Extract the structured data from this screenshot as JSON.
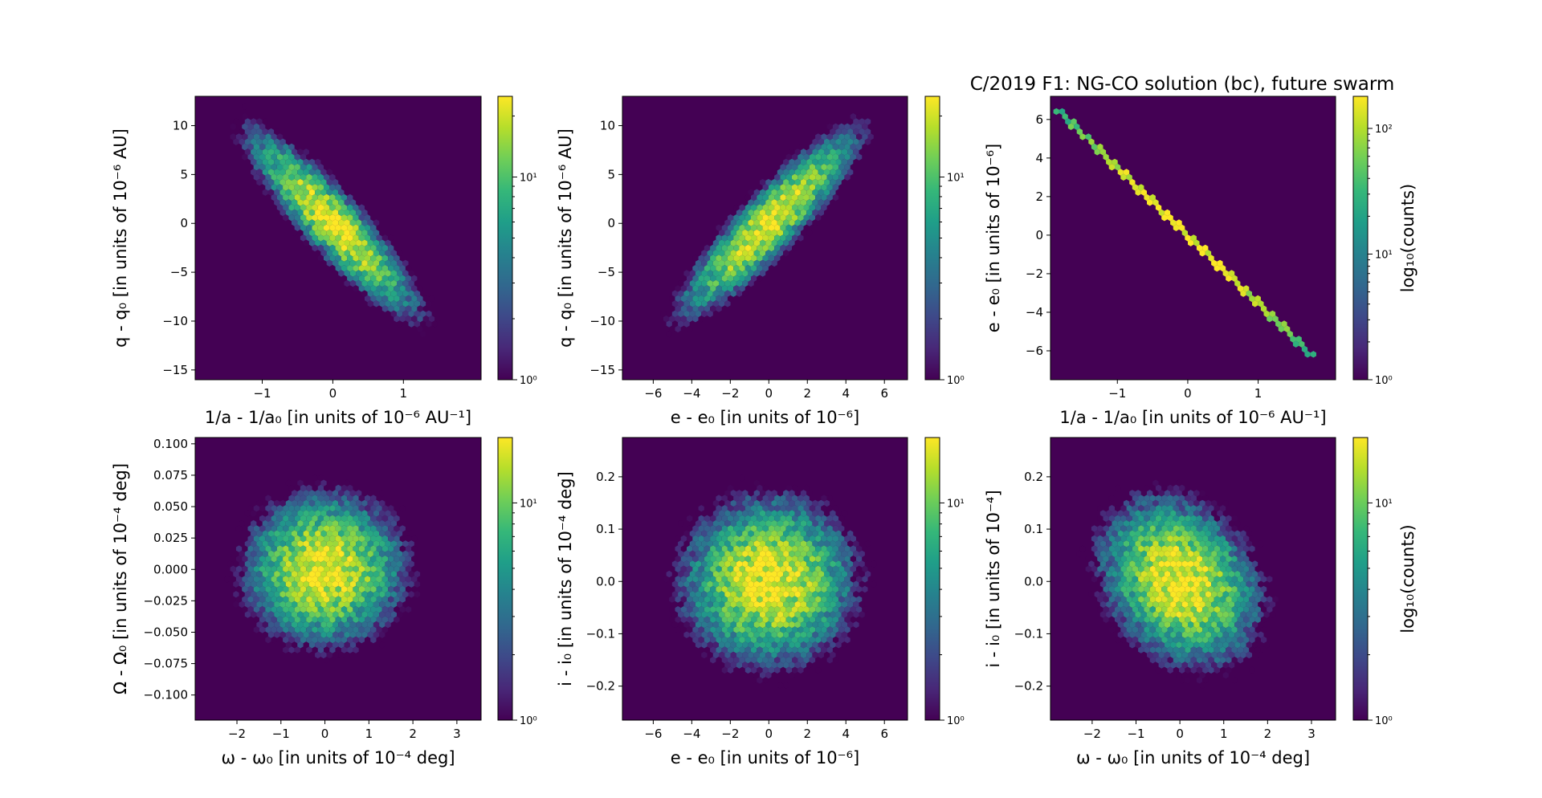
{
  "figure": {
    "title": "C/2019 F1: NG-CO solution (bc), future swarm"
  },
  "colors": {
    "background": "#440154",
    "colormap": [
      "#440154",
      "#482878",
      "#3e4989",
      "#31688e",
      "#26828e",
      "#1f9e89",
      "#35b779",
      "#6ece58",
      "#b5de2b",
      "#fde725"
    ]
  },
  "chart_data": [
    {
      "type": "heatmap",
      "subtype": "hexbin",
      "panel": "top-left",
      "xlabel": "1/a - 1/a₀ [in units of 10⁻⁶ AU⁻¹]",
      "ylabel": "q - q₀ [in units of 10⁻⁶ AU]",
      "xlim": [
        -1.95,
        2.1
      ],
      "ylim": [
        -16,
        13
      ],
      "xticks": [
        -1,
        0,
        1
      ],
      "yticks": [
        -15,
        -10,
        -5,
        0,
        5,
        10
      ],
      "distribution": {
        "center": [
          0,
          0
        ],
        "sx": 0.55,
        "sy": 4.3,
        "rho": -0.9,
        "peak_count": 25
      },
      "colorbar": {
        "scale": "log",
        "range": [
          1,
          25
        ],
        "ticks": [
          "10⁰",
          "10¹"
        ],
        "label": ""
      }
    },
    {
      "type": "heatmap",
      "subtype": "hexbin",
      "panel": "top-middle",
      "xlabel": "e - e₀ [in units of 10⁻⁶]",
      "ylabel": "q - q₀ [in units of 10⁻⁶ AU]",
      "xlim": [
        -7.6,
        7.2
      ],
      "ylim": [
        -16,
        13
      ],
      "xticks": [
        -6,
        -4,
        -2,
        0,
        2,
        4,
        6
      ],
      "yticks": [
        -15,
        -10,
        -5,
        0,
        5,
        10
      ],
      "distribution": {
        "center": [
          0,
          0
        ],
        "sx": 2.1,
        "sy": 4.3,
        "rho": 0.9,
        "peak_count": 25
      },
      "colorbar": {
        "scale": "log",
        "range": [
          1,
          25
        ],
        "ticks": [
          "10⁰",
          "10¹"
        ],
        "label": ""
      }
    },
    {
      "type": "heatmap",
      "subtype": "hexbin",
      "panel": "top-right",
      "xlabel": "1/a - 1/a₀ [in units of 10⁻⁶ AU⁻¹]",
      "ylabel": "e - e₀ [in units of 10⁻⁶]",
      "xlim": [
        -1.95,
        2.1
      ],
      "ylim": [
        -7.5,
        7.2
      ],
      "xticks": [
        -1,
        0,
        1
      ],
      "yticks": [
        -6,
        -4,
        -2,
        0,
        2,
        4,
        6
      ],
      "distribution": {
        "line_from": [
          -1.85,
          6.5
        ],
        "line_to": [
          1.75,
          -6.2
        ],
        "peak_count": 180
      },
      "colorbar": {
        "scale": "log",
        "range": [
          1,
          180
        ],
        "ticks": [
          "10⁰",
          "10¹",
          "10²"
        ],
        "label": "log₁₀(counts)"
      }
    },
    {
      "type": "heatmap",
      "subtype": "hexbin",
      "panel": "bottom-left",
      "xlabel": "ω - ω₀ [in units of 10⁻⁴ deg]",
      "ylabel": "Ω - Ω₀ [in units of 10⁻⁴ deg]",
      "xlim": [
        -2.95,
        3.55
      ],
      "ylim": [
        -0.12,
        0.105
      ],
      "xticks": [
        -2,
        -1,
        0,
        1,
        2,
        3
      ],
      "yticks": [
        "-0.100",
        "-0.075",
        "-0.050",
        "-0.025",
        "0.000",
        "0.025",
        "0.050",
        "0.075",
        "0.100"
      ],
      "distribution": {
        "center": [
          0,
          0
        ],
        "sx": 0.85,
        "sy": 0.028,
        "rho": 0.0,
        "peak_count": 20
      },
      "colorbar": {
        "scale": "log",
        "range": [
          1,
          20
        ],
        "ticks": [
          "10⁰",
          "10¹"
        ],
        "label": ""
      }
    },
    {
      "type": "heatmap",
      "subtype": "hexbin",
      "panel": "bottom-middle",
      "xlabel": "e - e₀ [in units of 10⁻⁶]",
      "ylabel": "i - i₀ [in units of 10⁻⁴ deg]",
      "xlim": [
        -7.6,
        7.2
      ],
      "ylim": [
        -0.265,
        0.275
      ],
      "xticks": [
        -6,
        -4,
        -2,
        0,
        2,
        4,
        6
      ],
      "yticks": [
        "-0.2",
        "-0.1",
        "0.0",
        "0.1",
        "0.2"
      ],
      "distribution": {
        "center": [
          0,
          0
        ],
        "sx": 2.1,
        "sy": 0.075,
        "rho": 0.0,
        "peak_count": 20
      },
      "colorbar": {
        "scale": "log",
        "range": [
          1,
          20
        ],
        "ticks": [
          "10⁰",
          "10¹"
        ],
        "label": ""
      }
    },
    {
      "type": "heatmap",
      "subtype": "hexbin",
      "panel": "bottom-right",
      "xlabel": "ω - ω₀ [in units of 10⁻⁴ deg]",
      "ylabel": "i - i₀ [in units of 10⁻⁴]",
      "xlim": [
        -2.95,
        3.55
      ],
      "ylim": [
        -0.265,
        0.275
      ],
      "xticks": [
        -2,
        -1,
        0,
        1,
        2,
        3
      ],
      "yticks": [
        "-0.2",
        "-0.1",
        "0.0",
        "0.1",
        "0.2"
      ],
      "distribution": {
        "center": [
          0,
          0
        ],
        "sx": 0.85,
        "sy": 0.075,
        "rho": -0.25,
        "peak_count": 20
      },
      "colorbar": {
        "scale": "log",
        "range": [
          1,
          20
        ],
        "ticks": [
          "10⁰",
          "10¹"
        ],
        "label": "log₁₀(counts)"
      }
    }
  ]
}
